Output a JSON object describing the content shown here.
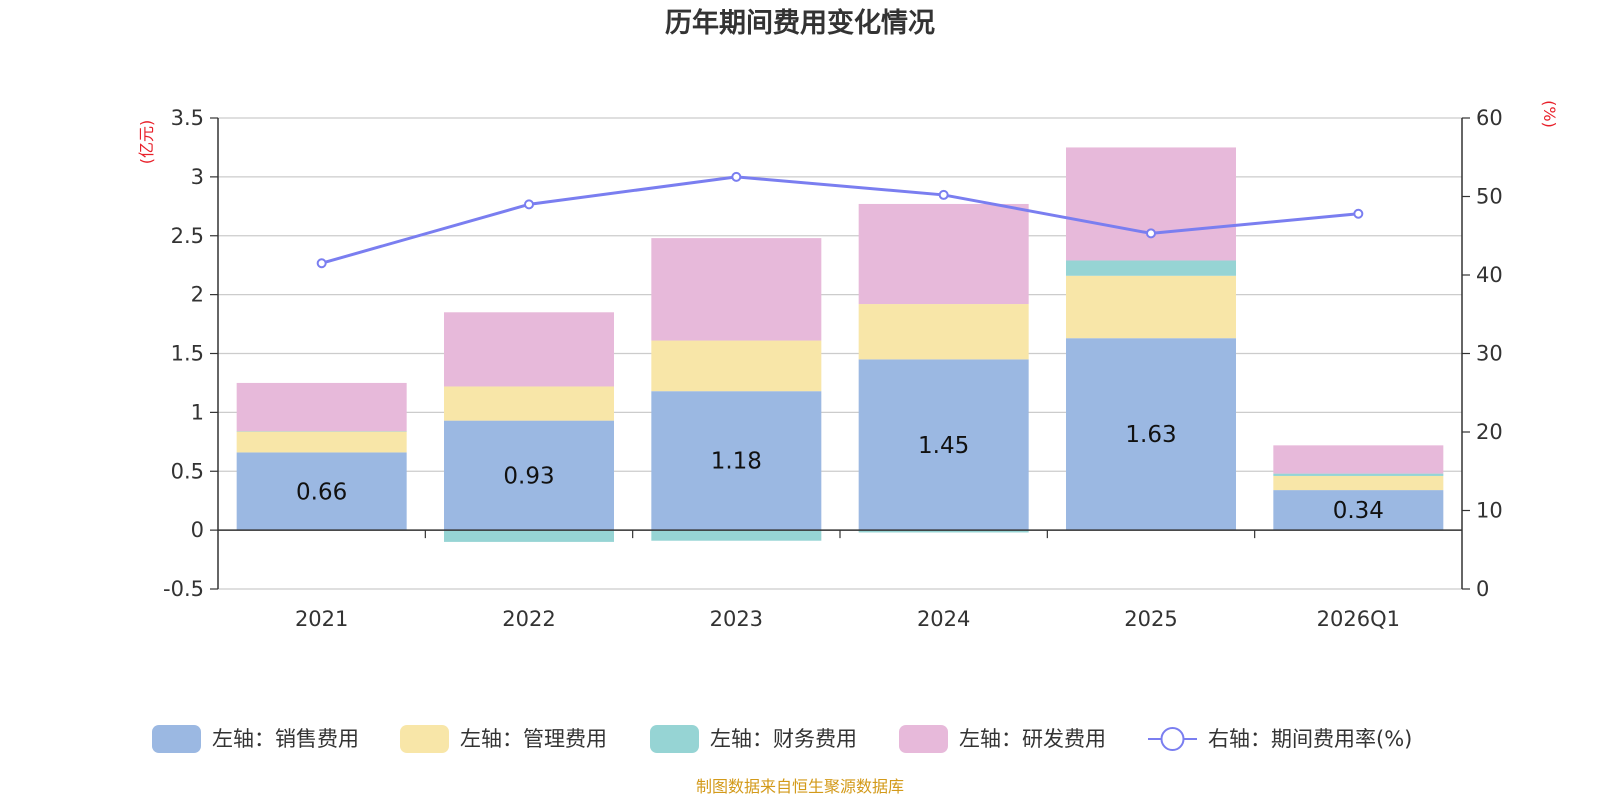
{
  "chart_data": {
    "type": "bar",
    "stacked": true,
    "title": "历年期间费用变化情况",
    "categories": [
      "2021",
      "2022",
      "2023",
      "2024",
      "2025",
      "2026Q1"
    ],
    "left_axis": {
      "unit": "(亿元)",
      "ylim": [
        -0.5,
        3.5
      ],
      "ticks": [
        "3.5",
        "3",
        "2.5",
        "2",
        "1.5",
        "1",
        "0.5",
        "0",
        "-0.5"
      ],
      "tick_values": [
        3.5,
        3,
        2.5,
        2,
        1.5,
        1,
        0.5,
        0,
        -0.5
      ]
    },
    "right_axis": {
      "unit": "(%)",
      "ylim": [
        0,
        60
      ],
      "ticks": [
        "60",
        "50",
        "40",
        "30",
        "20",
        "10",
        "0"
      ],
      "tick_values": [
        60,
        50,
        40,
        30,
        20,
        10,
        0
      ]
    },
    "series": [
      {
        "name": "左轴：销售费用",
        "color": "#9bb8e2",
        "values": [
          0.66,
          0.93,
          1.18,
          1.45,
          1.63,
          0.34
        ],
        "labels": [
          "0.66",
          "0.93",
          "1.18",
          "1.45",
          "1.63",
          "0.34"
        ]
      },
      {
        "name": "左轴：管理费用",
        "color": "#f8e6a8",
        "values": [
          0.18,
          0.29,
          0.43,
          0.47,
          0.53,
          0.12
        ]
      },
      {
        "name": "左轴：财务费用",
        "color": "#96d4d4",
        "values": [
          0.0,
          -0.1,
          -0.09,
          -0.02,
          0.13,
          0.02
        ]
      },
      {
        "name": "左轴：研发费用",
        "color": "#e7b9da",
        "values": [
          0.41,
          0.63,
          0.87,
          0.85,
          0.96,
          0.24
        ]
      }
    ],
    "line": {
      "name": "右轴：期间费用率(%)",
      "color": "#7a7ef0",
      "axis": "right",
      "values": [
        41.5,
        49.0,
        52.5,
        50.2,
        45.3,
        47.8
      ]
    },
    "legend_position": "bottom",
    "grid": true,
    "source": "制图数据来自恒生聚源数据库"
  }
}
